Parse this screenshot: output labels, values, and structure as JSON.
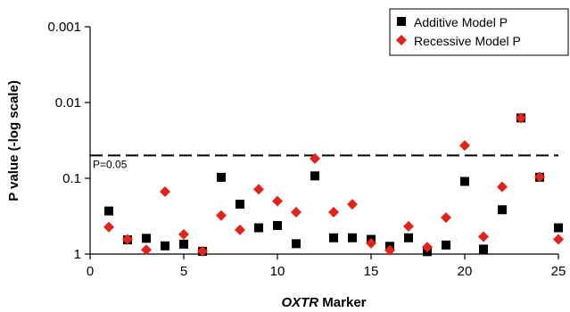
{
  "chart_data": {
    "type": "scatter",
    "xlabel_italic": "OXTR",
    "xlabel_rest": " Marker",
    "ylabel": "P value (-log scale)",
    "xlim": [
      0,
      25
    ],
    "x_ticks": [
      0,
      5,
      10,
      15,
      20,
      25
    ],
    "ylim": [
      1,
      0.001
    ],
    "y_scale": "neg-log",
    "y_ticks": [
      {
        "value": 0.001,
        "label": "0.001"
      },
      {
        "value": 0.01,
        "label": "0.01"
      },
      {
        "value": 0.1,
        "label": "0.1"
      },
      {
        "value": 1,
        "label": "1"
      }
    ],
    "grid": false,
    "legend_position": "top-right",
    "reference_line": {
      "y": 0.05,
      "label": "P=0.05",
      "style": "dashed"
    },
    "series": [
      {
        "name": "Additive Model P",
        "marker": "square",
        "color": "#000000",
        "x": [
          1,
          2,
          3,
          4,
          5,
          6,
          7,
          8,
          9,
          10,
          11,
          12,
          13,
          14,
          15,
          16,
          17,
          18,
          19,
          20,
          21,
          22,
          23,
          24,
          25
        ],
        "y": [
          0.27,
          0.65,
          0.62,
          0.78,
          0.74,
          0.92,
          0.097,
          0.22,
          0.45,
          0.42,
          0.73,
          0.093,
          0.61,
          0.61,
          0.64,
          0.79,
          0.61,
          0.93,
          0.76,
          0.11,
          0.86,
          0.26,
          0.016,
          0.097,
          0.45
        ]
      },
      {
        "name": "Recessive Model P",
        "marker": "diamond",
        "color": "#e2231a",
        "x": [
          1,
          2,
          3,
          4,
          5,
          6,
          7,
          8,
          9,
          10,
          11,
          12,
          13,
          14,
          15,
          16,
          17,
          18,
          19,
          20,
          21,
          22,
          23,
          24,
          25
        ],
        "y": [
          0.44,
          0.64,
          0.88,
          0.15,
          0.55,
          0.92,
          0.31,
          0.48,
          0.14,
          0.2,
          0.28,
          0.055,
          0.28,
          0.22,
          0.72,
          0.89,
          0.43,
          0.81,
          0.33,
          0.037,
          0.59,
          0.13,
          0.016,
          0.096,
          0.64
        ]
      }
    ]
  }
}
